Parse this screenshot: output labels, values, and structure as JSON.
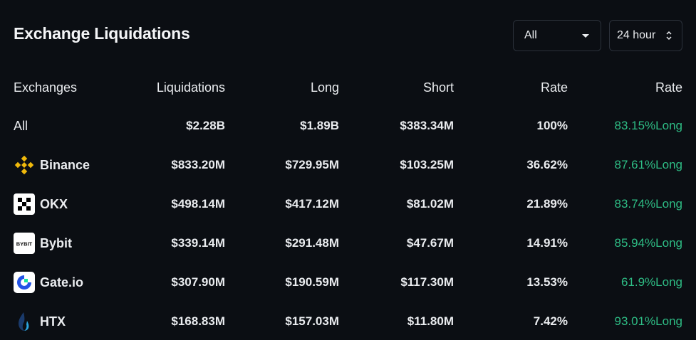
{
  "header": {
    "title": "Exchange Liquidations",
    "filter_value": "All",
    "period_value": "24 hour"
  },
  "table": {
    "columns": [
      "Exchanges",
      "Liquidations",
      "Long",
      "Short",
      "Rate",
      "Rate"
    ],
    "rows": [
      {
        "exchange": "All",
        "liquidations": "$2.28B",
        "long": "$1.89B",
        "short": "$383.34M",
        "rate": "100%",
        "long_rate": "83.15%Long",
        "icon": ""
      },
      {
        "exchange": "Binance",
        "liquidations": "$833.20M",
        "long": "$729.95M",
        "short": "$103.25M",
        "rate": "36.62%",
        "long_rate": "87.61%Long",
        "icon": "binance-logo-icon"
      },
      {
        "exchange": "OKX",
        "liquidations": "$498.14M",
        "long": "$417.12M",
        "short": "$81.02M",
        "rate": "21.89%",
        "long_rate": "83.74%Long",
        "icon": "okx-logo-icon"
      },
      {
        "exchange": "Bybit",
        "liquidations": "$339.14M",
        "long": "$291.48M",
        "short": "$47.67M",
        "rate": "14.91%",
        "long_rate": "85.94%Long",
        "icon": "bybit-logo-icon"
      },
      {
        "exchange": "Gate.io",
        "liquidations": "$307.90M",
        "long": "$190.59M",
        "short": "$117.30M",
        "rate": "13.53%",
        "long_rate": "61.9%Long",
        "icon": "gateio-logo-icon"
      },
      {
        "exchange": "HTX",
        "liquidations": "$168.83M",
        "long": "$157.03M",
        "short": "$11.80M",
        "rate": "7.42%",
        "long_rate": "93.01%Long",
        "icon": "htx-logo-icon"
      }
    ],
    "bybit_logo_text": "BYBIT"
  },
  "colors": {
    "background": "#0b0e13",
    "positive": "#2ebd85",
    "binance": "#f0b90b",
    "gateio": "#2354e6",
    "htx": "#2ca6e0"
  }
}
